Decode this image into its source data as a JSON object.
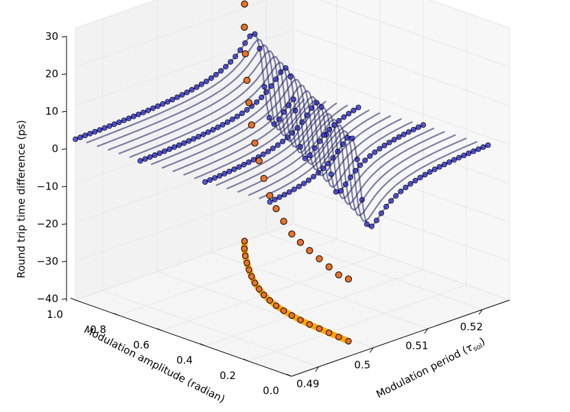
{
  "chart_data": {
    "type": "scatter3d",
    "title": "",
    "xlabel": "Modulation period (",
    "xlabel_symbol": "τ",
    "xlabel_subscript": "sol",
    "xlabel_close": ")",
    "ylabel": "Modulation amplitude (radian)",
    "zlabel": "Round trip time difference (ps)",
    "xlim": [
      0.485,
      0.525
    ],
    "ylim": [
      0.0,
      1.0
    ],
    "zlim": [
      -40,
      30
    ],
    "x_ticks": [
      "0.49",
      "0.5",
      "0.51",
      "0.52"
    ],
    "x_tick_values": [
      0.49,
      0.5,
      0.51,
      0.52
    ],
    "y_ticks": [
      "0.0",
      "0.2",
      "0.4",
      "0.6",
      "0.8",
      "1.0"
    ],
    "y_tick_values": [
      0.0,
      0.2,
      0.4,
      0.6,
      0.8,
      1.0
    ],
    "z_ticks": [
      "−40",
      "−30",
      "−20",
      "−10",
      "0",
      "10",
      "20",
      "30"
    ],
    "z_tick_values": [
      -40,
      -30,
      -20,
      -10,
      0,
      10,
      20,
      30
    ],
    "grid": true,
    "colors": {
      "blue_curve": "#2b2bd6",
      "dark_curve": "#1a1a5e",
      "orange_points": "#e8722a",
      "orange_shadow": "#ffa500",
      "edge": "#000000"
    },
    "series": [
      {
        "name": "dispersive wave resonance curves",
        "kind": "line-family",
        "amplitudes": [
          0.1,
          0.15,
          0.2,
          0.25,
          0.3,
          0.35,
          0.4,
          0.45,
          0.5,
          0.55,
          0.6,
          0.65,
          0.7,
          0.75,
          0.8,
          0.85,
          0.9,
          0.95,
          1.0
        ],
        "resonance_period_at_zero_amp": 0.4995,
        "resonance_shift_per_amp": 0.02,
        "peak_delay_ps": 28,
        "trough_delay_ps": -25,
        "far_field_delay_ps": 0
      },
      {
        "name": "resonance locations",
        "kind": "scatter",
        "period": [
          0.4994,
          0.4996,
          0.4998,
          0.5,
          0.5002,
          0.5005,
          0.5009,
          0.5014,
          0.502,
          0.5028,
          0.5037,
          0.5048,
          0.506,
          0.5074,
          0.5089,
          0.5105,
          0.5122,
          0.514,
          0.516
        ],
        "amplitude": [
          0.1,
          0.15,
          0.2,
          0.25,
          0.3,
          0.35,
          0.4,
          0.45,
          0.5,
          0.55,
          0.6,
          0.65,
          0.7,
          0.75,
          0.8,
          0.85,
          0.9,
          0.95,
          1.0
        ],
        "delay_ps": [
          -24,
          -24,
          -23,
          -22,
          -21,
          -20,
          -19,
          -17,
          -15,
          -13,
          -10,
          -7,
          -4,
          -1,
          3,
          7,
          12,
          17,
          21
        ]
      }
    ]
  }
}
